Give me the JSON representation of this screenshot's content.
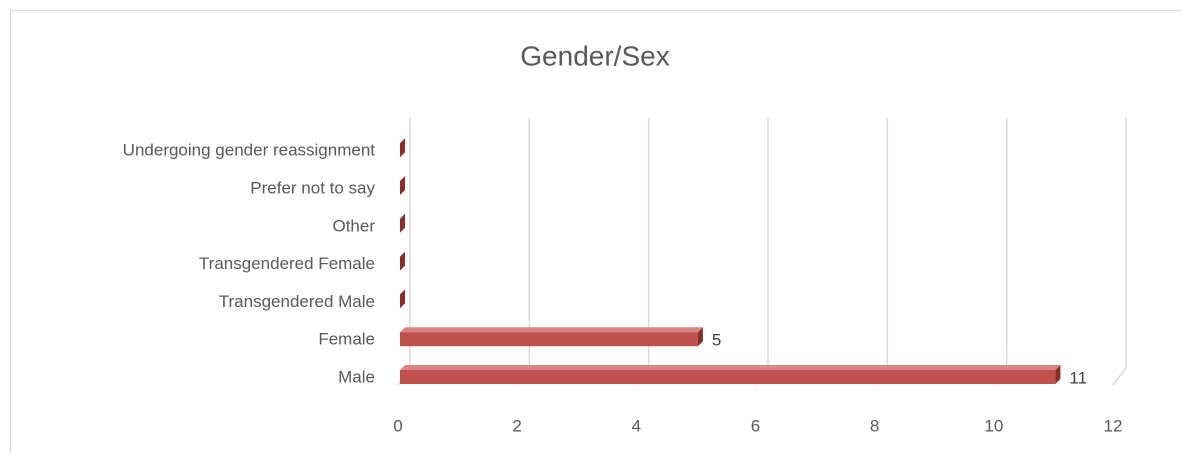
{
  "chart_data": {
    "type": "bar",
    "orientation": "horizontal",
    "title": "Gender/Sex",
    "categories": [
      "Male",
      "Female",
      "Transgendered Male",
      "Transgendered Female",
      "Other",
      "Prefer not to say",
      "Undergoing gender reassignment"
    ],
    "values": [
      11,
      5,
      0,
      0,
      0,
      0,
      0
    ],
    "color": "#c0504d",
    "xlim": [
      0,
      12
    ],
    "xticks": [
      0,
      2,
      4,
      6,
      8,
      10,
      12
    ],
    "grid": true,
    "data_labels": true
  }
}
